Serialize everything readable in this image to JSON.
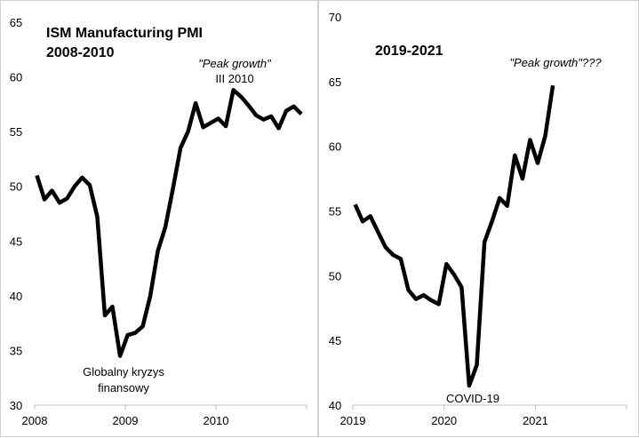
{
  "chart_data": [
    {
      "type": "line",
      "title": "ISM Manufacturing PMI",
      "subtitle": "2008-2010",
      "xlabel": "",
      "ylabel": "",
      "ylim": [
        30,
        65
      ],
      "yticks": [
        "30",
        "35",
        "40",
        "45",
        "50",
        "55",
        "60",
        "65"
      ],
      "xticks": [
        "2008",
        "2009",
        "2010"
      ],
      "grid": false,
      "x_start": "2008-01",
      "frequency": "monthly",
      "values": [
        51.0,
        48.8,
        49.6,
        48.5,
        48.9,
        50.0,
        50.8,
        50.1,
        47.2,
        38.2,
        39.0,
        34.5,
        36.4,
        36.6,
        37.2,
        40.0,
        44.1,
        46.3,
        49.8,
        53.5,
        55.0,
        57.6,
        55.4,
        55.8,
        56.2,
        55.5,
        58.8,
        58.2,
        57.4,
        56.5,
        56.1,
        56.4,
        55.3,
        56.9,
        57.3,
        56.6
      ],
      "annotations": {
        "peak_line1": "\"Peak growth\"",
        "peak_line2": "III 2010",
        "crisis_line1": "Globalny kryzys",
        "crisis_line2": "finansowy"
      },
      "line_color": "#000000"
    },
    {
      "type": "line",
      "title": "",
      "subtitle": "2019-2021",
      "xlabel": "",
      "ylabel": "",
      "ylim": [
        40,
        70
      ],
      "yticks": [
        "40",
        "45",
        "50",
        "55",
        "60",
        "65",
        "70"
      ],
      "xticks": [
        "2019",
        "2020",
        "2021"
      ],
      "grid": false,
      "x_start": "2019-01",
      "frequency": "monthly",
      "values": [
        55.5,
        54.2,
        54.6,
        53.4,
        52.2,
        51.6,
        51.3,
        48.9,
        48.2,
        48.5,
        48.1,
        47.8,
        50.9,
        50.1,
        49.1,
        41.5,
        43.1,
        52.6,
        54.2,
        56.0,
        55.4,
        59.3,
        57.5,
        60.5,
        58.7,
        60.8,
        64.7
      ],
      "annotations": {
        "peak_line1": "\"Peak growth\"???",
        "covid": "COVID-19"
      },
      "line_color": "#000000"
    }
  ]
}
